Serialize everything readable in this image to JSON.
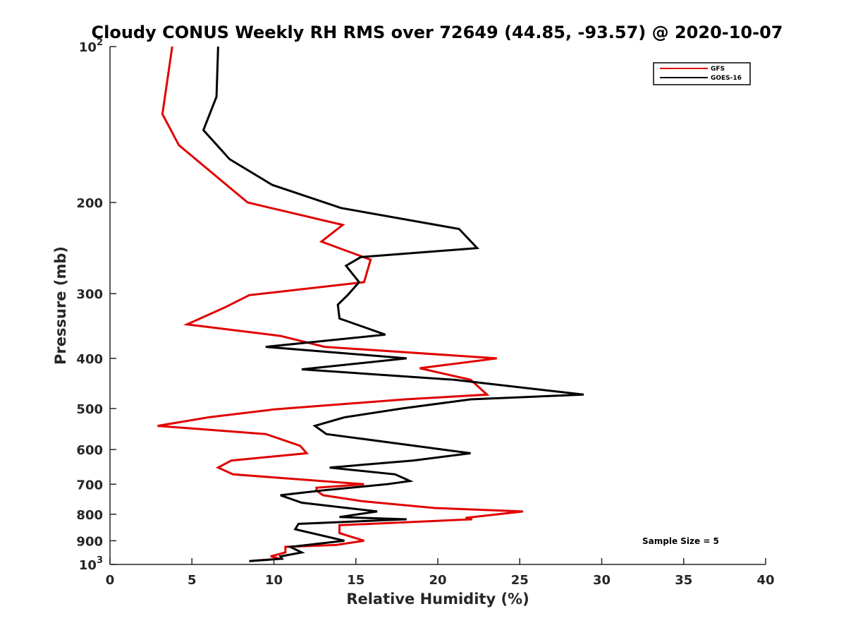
{
  "chart_data": {
    "type": "line",
    "title": "Cloudy CONUS Weekly RH RMS over 72649 (44.85, -93.57) @ 2020-10-07",
    "xlabel": "Relative Humidity (%)",
    "ylabel": "Pressure (mb)",
    "xlim": [
      0,
      40
    ],
    "ylim": [
      100,
      1000
    ],
    "y_scale": "log",
    "y_reversed": true,
    "grid": false,
    "legend_position": "top-right",
    "x_ticks": [
      0,
      5,
      10,
      15,
      20,
      25,
      30,
      35,
      40
    ],
    "x_tick_labels": [
      "0",
      "5",
      "10",
      "15",
      "20",
      "25",
      "30",
      "35",
      "40"
    ],
    "y_ticks": [
      100,
      200,
      300,
      400,
      500,
      600,
      700,
      800,
      900,
      1000
    ],
    "y_tick_labels": [
      {
        "base": "10",
        "exp": "2"
      },
      {
        "base": "200",
        "exp": ""
      },
      {
        "base": "300",
        "exp": ""
      },
      {
        "base": "400",
        "exp": ""
      },
      {
        "base": "500",
        "exp": ""
      },
      {
        "base": "600",
        "exp": ""
      },
      {
        "base": "700",
        "exp": ""
      },
      {
        "base": "800",
        "exp": ""
      },
      {
        "base": "900",
        "exp": ""
      },
      {
        "base": "10",
        "exp": "3"
      }
    ],
    "series": [
      {
        "name": "GFS",
        "color": "#e00000",
        "points": [
          [
            3.8,
            100
          ],
          [
            3.2,
            135
          ],
          [
            4.2,
            155
          ],
          [
            6.2,
            175
          ],
          [
            8.4,
            200
          ],
          [
            14.2,
            221
          ],
          [
            12.9,
            238
          ],
          [
            15.9,
            258
          ],
          [
            15.5,
            285
          ],
          [
            8.5,
            302
          ],
          [
            7.0,
            319
          ],
          [
            4.7,
            344
          ],
          [
            10.4,
            362
          ],
          [
            13.1,
            380
          ],
          [
            23.6,
            400
          ],
          [
            18.9,
            418
          ],
          [
            22.0,
            440
          ],
          [
            23.0,
            470
          ],
          [
            18.0,
            480
          ],
          [
            10.0,
            502
          ],
          [
            6.0,
            520
          ],
          [
            2.9,
            540
          ],
          [
            9.5,
            560
          ],
          [
            11.6,
            590
          ],
          [
            12.0,
            610
          ],
          [
            7.4,
            630
          ],
          [
            6.6,
            650
          ],
          [
            7.5,
            670
          ],
          [
            15.5,
            700
          ],
          [
            12.6,
            711
          ],
          [
            12.6,
            720
          ],
          [
            13.0,
            735
          ],
          [
            15.4,
            755
          ],
          [
            19.8,
            778
          ],
          [
            25.2,
            790
          ],
          [
            21.7,
            813
          ],
          [
            22.1,
            818
          ],
          [
            14.0,
            840
          ],
          [
            14.0,
            870
          ],
          [
            15.5,
            900
          ],
          [
            13.8,
            917
          ],
          [
            10.7,
            925
          ],
          [
            10.7,
            948
          ],
          [
            9.8,
            965
          ],
          [
            10.4,
            975
          ],
          [
            8.5,
            985
          ]
        ]
      },
      {
        "name": "GOES-16",
        "color": "#000000",
        "points": [
          [
            6.6,
            100
          ],
          [
            6.5,
            125
          ],
          [
            5.7,
            145
          ],
          [
            7.3,
            165
          ],
          [
            9.9,
            185
          ],
          [
            14.1,
            205
          ],
          [
            21.3,
            225
          ],
          [
            22.4,
            245
          ],
          [
            15.3,
            255
          ],
          [
            14.4,
            265
          ],
          [
            15.2,
            285
          ],
          [
            14.5,
            302
          ],
          [
            13.9,
            315
          ],
          [
            14.0,
            335
          ],
          [
            16.8,
            360
          ],
          [
            9.5,
            380
          ],
          [
            18.1,
            400
          ],
          [
            11.7,
            420
          ],
          [
            21.0,
            440
          ],
          [
            28.9,
            470
          ],
          [
            22.0,
            480
          ],
          [
            17.8,
            500
          ],
          [
            14.3,
            520
          ],
          [
            12.5,
            540
          ],
          [
            13.2,
            560
          ],
          [
            22.0,
            610
          ],
          [
            18.5,
            630
          ],
          [
            13.4,
            650
          ],
          [
            17.4,
            670
          ],
          [
            18.3,
            690
          ],
          [
            16.9,
            700
          ],
          [
            12.9,
            720
          ],
          [
            10.4,
            735
          ],
          [
            11.7,
            760
          ],
          [
            16.3,
            790
          ],
          [
            14.0,
            810
          ],
          [
            18.1,
            818
          ],
          [
            11.5,
            835
          ],
          [
            11.3,
            855
          ],
          [
            14.3,
            900
          ],
          [
            11.0,
            925
          ],
          [
            11.7,
            948
          ],
          [
            10.4,
            965
          ],
          [
            10.5,
            975
          ],
          [
            8.5,
            985
          ]
        ]
      }
    ],
    "annotations": [
      "Sample Size = 5"
    ]
  }
}
